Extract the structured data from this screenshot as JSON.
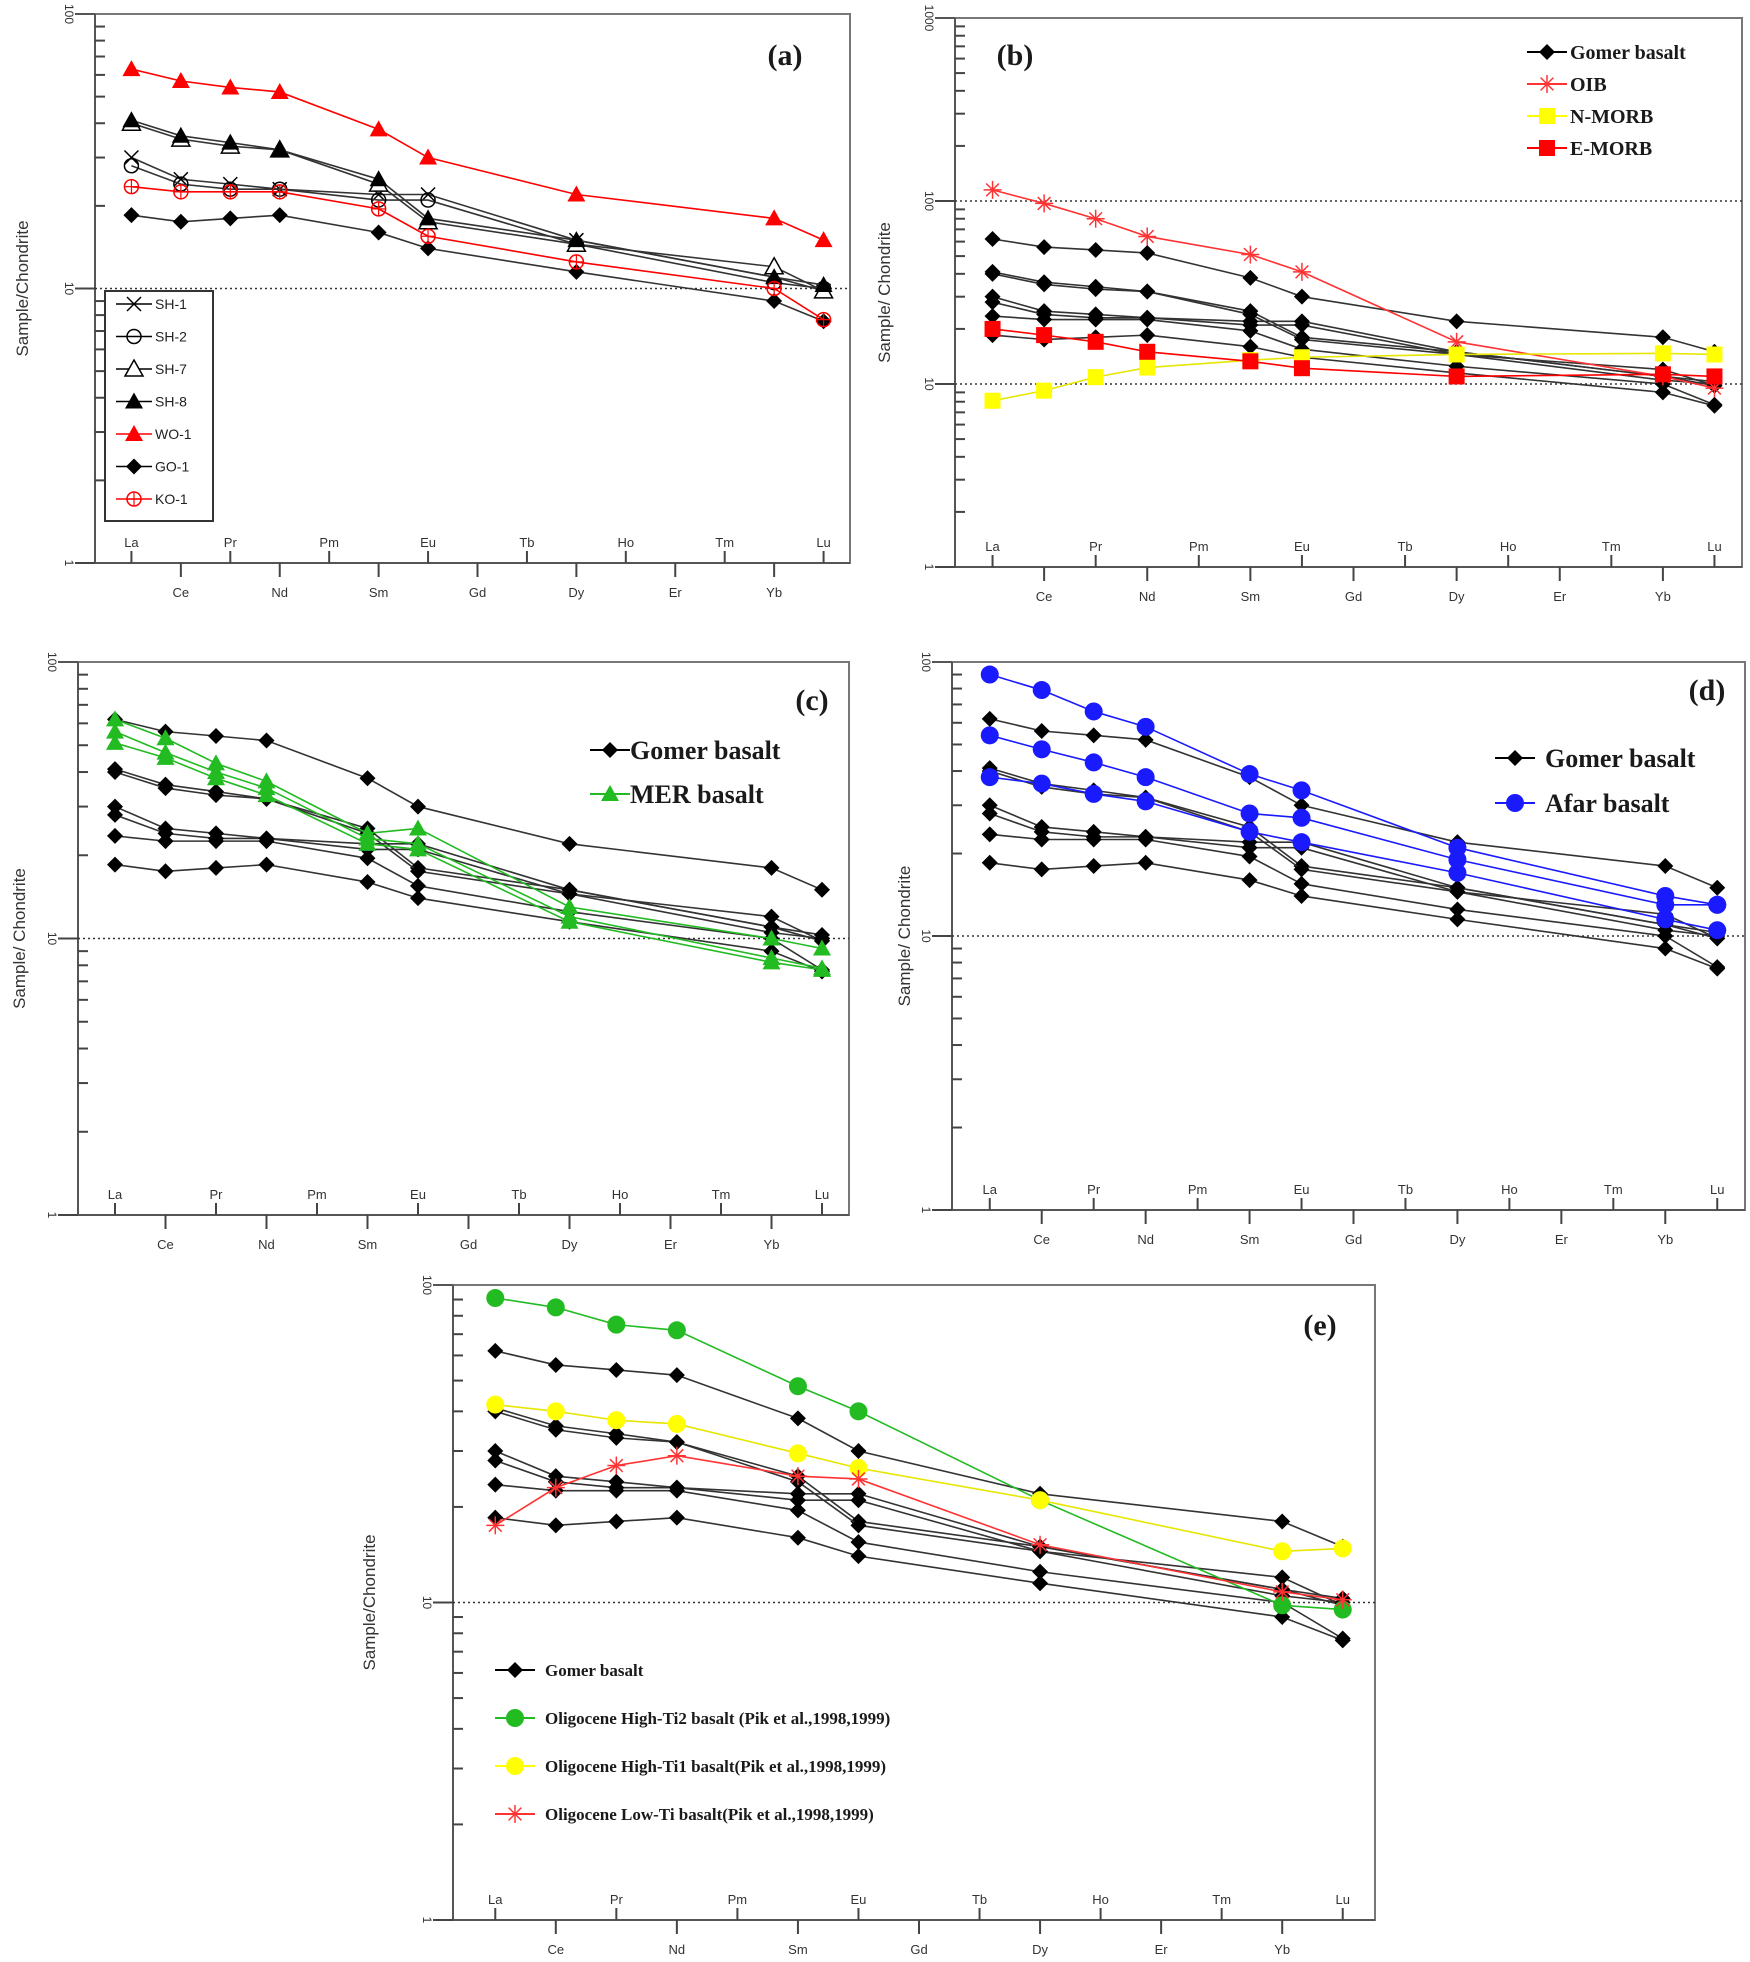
{
  "figure": {
    "elements": [
      "La",
      "Ce",
      "Pr",
      "Nd",
      "Pm",
      "Sm",
      "Eu",
      "Gd",
      "Tb",
      "Dy",
      "Ho",
      "Er",
      "Tm",
      "Yb",
      "Lu"
    ],
    "plotted_elements": [
      "La",
      "Ce",
      "Pr",
      "Nd",
      "Sm",
      "Eu",
      "Dy",
      "Yb",
      "Lu"
    ]
  },
  "chart_data": [
    {
      "panel": "(a)",
      "type": "line",
      "title": "(a)",
      "xlabel": "",
      "ylabel": "Sample/Chondrite",
      "yscale": "log",
      "ylim": [
        1,
        100
      ],
      "yticks": [
        "1",
        "10",
        "100"
      ],
      "grid": false,
      "reference_line": 10,
      "legend_placement": "lower-left",
      "x": [
        "La",
        "Ce",
        "Pr",
        "Nd",
        "Sm",
        "Eu",
        "Dy",
        "Yb",
        "Lu"
      ],
      "series": [
        {
          "name": "SH-1",
          "color": "#000000",
          "marker": "x",
          "values": [
            30,
            25,
            24,
            23,
            22,
            22,
            15,
            11,
            9.8
          ]
        },
        {
          "name": "SH-2",
          "color": "#000000",
          "marker": "open-circle",
          "values": [
            28,
            24,
            23,
            23,
            21,
            21,
            14.5,
            10.5,
            10
          ]
        },
        {
          "name": "SH-7",
          "color": "#000000",
          "marker": "open-triangle",
          "values": [
            40,
            35,
            33,
            32,
            24,
            17.5,
            14.5,
            12,
            9.8
          ]
        },
        {
          "name": "SH-8",
          "color": "#000000",
          "marker": "filled-triangle",
          "values": [
            41,
            36,
            34,
            32,
            25,
            18,
            15,
            11,
            10.3
          ]
        },
        {
          "name": "WO-1",
          "color": "#ff0000",
          "marker": "filled-triangle",
          "values": [
            63,
            57,
            54,
            52,
            38,
            30,
            22,
            18,
            15
          ]
        },
        {
          "name": "GO-1",
          "color": "#000000",
          "marker": "diamond",
          "values": [
            18.5,
            17.5,
            18,
            18.5,
            16,
            14,
            11.5,
            9,
            7.6
          ]
        },
        {
          "name": "KO-1",
          "color": "#ff0000",
          "marker": "crossed-circle",
          "values": [
            23.5,
            22.5,
            22.5,
            22.5,
            19.5,
            15.5,
            12.5,
            10,
            7.7
          ]
        }
      ]
    },
    {
      "panel": "(b)",
      "type": "line",
      "title": "(b)",
      "xlabel": "",
      "ylabel": "Sample/ Chondrite",
      "yscale": "log",
      "ylim": [
        1,
        1000
      ],
      "yticks": [
        "1",
        "10",
        "100",
        "1000"
      ],
      "grid": false,
      "reference_lines": [
        10,
        100
      ],
      "legend_placement": "top-right",
      "legend": [
        "Gomer basalt",
        "OIB",
        "N-MORB",
        "E-MORB"
      ],
      "x": [
        "La",
        "Ce",
        "Pr",
        "Nd",
        "Sm",
        "Eu",
        "Dy",
        "Yb",
        "Lu"
      ],
      "series": [
        {
          "name": "Gomer basalt",
          "color": "#000000",
          "marker": "diamond",
          "values": [
            62,
            56,
            54,
            52,
            38,
            30,
            22,
            18,
            15
          ]
        },
        {
          "name": "Gomer basalt",
          "color": "#000000",
          "marker": "diamond",
          "values": [
            41,
            36,
            34,
            32,
            25,
            18,
            15,
            11,
            10.3
          ]
        },
        {
          "name": "Gomer basalt",
          "color": "#000000",
          "marker": "diamond",
          "values": [
            40,
            35,
            33,
            32,
            24,
            17.5,
            14.5,
            12,
            9.8
          ]
        },
        {
          "name": "Gomer basalt",
          "color": "#000000",
          "marker": "diamond",
          "values": [
            30,
            25,
            24,
            23,
            22,
            22,
            15,
            11,
            9.8
          ]
        },
        {
          "name": "Gomer basalt",
          "color": "#000000",
          "marker": "diamond",
          "values": [
            28,
            24,
            23,
            23,
            21,
            21,
            14.5,
            10.5,
            10
          ]
        },
        {
          "name": "Gomer basalt",
          "color": "#000000",
          "marker": "diamond",
          "values": [
            23.5,
            22.5,
            22.5,
            22.5,
            19.5,
            15.5,
            12.5,
            10,
            7.7
          ]
        },
        {
          "name": "Gomer basalt",
          "color": "#000000",
          "marker": "diamond",
          "values": [
            18.5,
            17.5,
            18,
            18.5,
            16,
            14,
            11.5,
            9,
            7.6
          ]
        },
        {
          "name": "OIB",
          "color": "#ff3333",
          "marker": "asterisk",
          "values": [
            115,
            97,
            80,
            64,
            51,
            41,
            17,
            11,
            9.5
          ]
        },
        {
          "name": "N-MORB",
          "color": "#ffff00",
          "marker": "square",
          "values": [
            8.1,
            9.2,
            10.9,
            12.3,
            13.5,
            14,
            14.5,
            14.7,
            14.5
          ]
        },
        {
          "name": "E-MORB",
          "color": "#ff0000",
          "marker": "square",
          "values": [
            20,
            18.5,
            17,
            15,
            13.3,
            12.2,
            11,
            11.3,
            11
          ]
        }
      ]
    },
    {
      "panel": "(c)",
      "type": "line",
      "title": "(c)",
      "xlabel": "",
      "ylabel": "Sample/ Chondrite",
      "yscale": "log",
      "ylim": [
        1,
        100
      ],
      "yticks": [
        "1",
        "10",
        "100"
      ],
      "grid": false,
      "reference_line": 10,
      "legend_placement": "top-right",
      "legend": [
        "Gomer basalt",
        "MER basalt"
      ],
      "x": [
        "La",
        "Ce",
        "Pr",
        "Nd",
        "Sm",
        "Eu",
        "Dy",
        "Yb",
        "Lu"
      ],
      "series": [
        {
          "name": "Gomer basalt",
          "color": "#000000",
          "marker": "diamond",
          "values": [
            62,
            56,
            54,
            52,
            38,
            30,
            22,
            18,
            15
          ]
        },
        {
          "name": "Gomer basalt",
          "color": "#000000",
          "marker": "diamond",
          "values": [
            41,
            36,
            34,
            32,
            25,
            18,
            15,
            11,
            10.3
          ]
        },
        {
          "name": "Gomer basalt",
          "color": "#000000",
          "marker": "diamond",
          "values": [
            40,
            35,
            33,
            32,
            24,
            17.5,
            14.5,
            12,
            9.8
          ]
        },
        {
          "name": "Gomer basalt",
          "color": "#000000",
          "marker": "diamond",
          "values": [
            30,
            25,
            24,
            23,
            22,
            22,
            15,
            11,
            9.8
          ]
        },
        {
          "name": "Gomer basalt",
          "color": "#000000",
          "marker": "diamond",
          "values": [
            28,
            24,
            23,
            23,
            21,
            21,
            14.5,
            10.5,
            10
          ]
        },
        {
          "name": "Gomer basalt",
          "color": "#000000",
          "marker": "diamond",
          "values": [
            23.5,
            22.5,
            22.5,
            22.5,
            19.5,
            15.5,
            12.5,
            10,
            7.7
          ]
        },
        {
          "name": "Gomer basalt",
          "color": "#000000",
          "marker": "diamond",
          "values": [
            18.5,
            17.5,
            18,
            18.5,
            16,
            14,
            11.5,
            9,
            7.6
          ]
        },
        {
          "name": "MER basalt",
          "color": "#22bb22",
          "marker": "filled-triangle",
          "values": [
            62,
            53,
            43,
            37,
            24,
            25,
            13,
            10,
            9.2
          ]
        },
        {
          "name": "MER basalt",
          "color": "#22bb22",
          "marker": "filled-triangle",
          "values": [
            56,
            47,
            40,
            35,
            23,
            22,
            12,
            8.5,
            7.8
          ]
        },
        {
          "name": "MER basalt",
          "color": "#22bb22",
          "marker": "filled-triangle",
          "values": [
            51,
            45,
            38,
            33,
            22,
            21,
            11.5,
            8.2,
            7.7
          ]
        }
      ]
    },
    {
      "panel": "(d)",
      "type": "line",
      "title": "(d)",
      "xlabel": "",
      "ylabel": "Sample/ Chondrite",
      "yscale": "log",
      "ylim": [
        1,
        100
      ],
      "yticks": [
        "1",
        "10",
        "100"
      ],
      "grid": false,
      "reference_line": 10,
      "legend_placement": "top-right",
      "legend": [
        "Gomer basalt",
        "Afar basalt"
      ],
      "x": [
        "La",
        "Ce",
        "Pr",
        "Nd",
        "Sm",
        "Eu",
        "Dy",
        "Yb",
        "Lu"
      ],
      "series": [
        {
          "name": "Gomer basalt",
          "color": "#000000",
          "marker": "diamond",
          "values": [
            62,
            56,
            54,
            52,
            38,
            30,
            22,
            18,
            15
          ]
        },
        {
          "name": "Gomer basalt",
          "color": "#000000",
          "marker": "diamond",
          "values": [
            41,
            36,
            34,
            32,
            25,
            18,
            15,
            11,
            10.3
          ]
        },
        {
          "name": "Gomer basalt",
          "color": "#000000",
          "marker": "diamond",
          "values": [
            40,
            35,
            33,
            32,
            24,
            17.5,
            14.5,
            12,
            9.8
          ]
        },
        {
          "name": "Gomer basalt",
          "color": "#000000",
          "marker": "diamond",
          "values": [
            30,
            25,
            24,
            23,
            22,
            22,
            15,
            11,
            9.8
          ]
        },
        {
          "name": "Gomer basalt",
          "color": "#000000",
          "marker": "diamond",
          "values": [
            28,
            24,
            23,
            23,
            21,
            21,
            14.5,
            10.5,
            10
          ]
        },
        {
          "name": "Gomer basalt",
          "color": "#000000",
          "marker": "diamond",
          "values": [
            23.5,
            22.5,
            22.5,
            22.5,
            19.5,
            15.5,
            12.5,
            10,
            7.7
          ]
        },
        {
          "name": "Gomer basalt",
          "color": "#000000",
          "marker": "diamond",
          "values": [
            18.5,
            17.5,
            18,
            18.5,
            16,
            14,
            11.5,
            9,
            7.6
          ]
        },
        {
          "name": "Afar basalt",
          "color": "#1a1aff",
          "marker": "filled-circle",
          "values": [
            90,
            79,
            66,
            58,
            39,
            34,
            21,
            14,
            13
          ]
        },
        {
          "name": "Afar basalt",
          "color": "#1a1aff",
          "marker": "filled-circle",
          "values": [
            54,
            48,
            43,
            38,
            28,
            27,
            19,
            13,
            13
          ]
        },
        {
          "name": "Afar basalt",
          "color": "#1a1aff",
          "marker": "filled-circle",
          "values": [
            38,
            36,
            33,
            31,
            24,
            22,
            17,
            11.5,
            10.5
          ]
        }
      ]
    },
    {
      "panel": "(e)",
      "type": "line",
      "title": "(e)",
      "xlabel": "",
      "ylabel": "Sample/Chondrite",
      "yscale": "log",
      "ylim": [
        1,
        100
      ],
      "yticks": [
        "1",
        "10",
        "100"
      ],
      "grid": false,
      "reference_line": 10,
      "legend_placement": "lower-left",
      "legend": [
        "Gomer basalt",
        "Oligocene High-Ti2 basalt (Pik et al.,1998,1999)",
        "Oligocene High-Ti1 basalt(Pik et al.,1998,1999)",
        "Oligocene Low-Ti basalt(Pik et al.,1998,1999)"
      ],
      "x": [
        "La",
        "Ce",
        "Pr",
        "Nd",
        "Sm",
        "Eu",
        "Dy",
        "Yb",
        "Lu"
      ],
      "series": [
        {
          "name": "Gomer basalt",
          "color": "#000000",
          "marker": "diamond",
          "values": [
            62,
            56,
            54,
            52,
            38,
            30,
            22,
            18,
            15
          ]
        },
        {
          "name": "Gomer basalt",
          "color": "#000000",
          "marker": "diamond",
          "values": [
            41,
            36,
            34,
            32,
            25,
            18,
            15,
            11,
            10.3
          ]
        },
        {
          "name": "Gomer basalt",
          "color": "#000000",
          "marker": "diamond",
          "values": [
            40,
            35,
            33,
            32,
            24,
            17.5,
            14.5,
            12,
            9.8
          ]
        },
        {
          "name": "Gomer basalt",
          "color": "#000000",
          "marker": "diamond",
          "values": [
            30,
            25,
            24,
            23,
            22,
            22,
            15,
            11,
            9.8
          ]
        },
        {
          "name": "Gomer basalt",
          "color": "#000000",
          "marker": "diamond",
          "values": [
            28,
            24,
            23,
            23,
            21,
            21,
            14.5,
            10.5,
            10
          ]
        },
        {
          "name": "Gomer basalt",
          "color": "#000000",
          "marker": "diamond",
          "values": [
            23.5,
            22.5,
            22.5,
            22.5,
            19.5,
            15.5,
            12.5,
            10,
            7.7
          ]
        },
        {
          "name": "Gomer basalt",
          "color": "#000000",
          "marker": "diamond",
          "values": [
            18.5,
            17.5,
            18,
            18.5,
            16,
            14,
            11.5,
            9,
            7.6
          ]
        },
        {
          "name": "Oligocene High-Ti2 basalt (Pik et al.,1998,1999)",
          "color": "#22bb22",
          "marker": "filled-circle",
          "values": [
            91,
            85,
            75,
            72,
            48,
            40,
            21,
            9.8,
            9.5
          ]
        },
        {
          "name": "Oligocene High-Ti1 basalt(Pik et al.,1998,1999)",
          "color": "#ffff00",
          "marker": "filled-circle",
          "values": [
            42,
            40,
            37.5,
            36.5,
            29.5,
            26.5,
            21,
            14.5,
            14.8
          ]
        },
        {
          "name": "Oligocene Low-Ti basalt(Pik et al.,1998,1999)",
          "color": "#ff3333",
          "marker": "asterisk",
          "values": [
            17.5,
            23,
            27,
            29,
            25,
            24.5,
            15.2,
            10.8,
            10.2
          ]
        }
      ]
    }
  ]
}
